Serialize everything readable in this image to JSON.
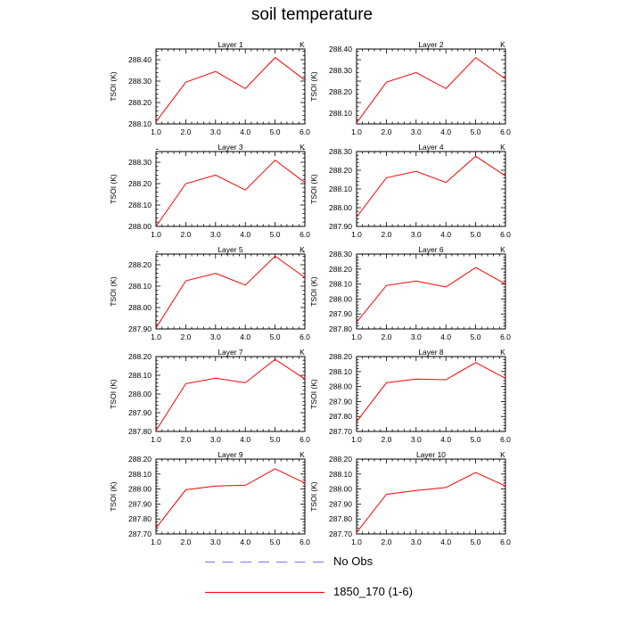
{
  "title": "soil temperature",
  "chart_data": [
    {
      "type": "line",
      "title": "Layer 1",
      "corner_label": "K",
      "ylabel": "TSOI  (K)",
      "x": [
        1,
        2,
        3,
        4,
        5,
        6
      ],
      "xticks": [
        "1.0",
        "2.0",
        "3.0",
        "4.0",
        "5.0",
        "6.0"
      ],
      "xlim": [
        1,
        6
      ],
      "ylim": [
        288.1,
        288.45
      ],
      "yticks": [
        "288.10",
        "288.20",
        "288.30",
        "288.40"
      ],
      "series": [
        {
          "name": "1850_170 (1-6)",
          "color": "#ff0000",
          "values": [
            288.11,
            288.295,
            288.345,
            288.265,
            288.41,
            288.305
          ]
        }
      ]
    },
    {
      "type": "line",
      "title": "Layer 2",
      "corner_label": "K",
      "ylabel": "TSOI  (K)",
      "x": [
        1,
        2,
        3,
        4,
        5,
        6
      ],
      "xticks": [
        "1.0",
        "2.0",
        "3.0",
        "4.0",
        "5.0",
        "6.0"
      ],
      "xlim": [
        1,
        6
      ],
      "ylim": [
        288.05,
        288.4
      ],
      "yticks": [
        "288.10",
        "288.20",
        "288.30",
        "288.40"
      ],
      "series": [
        {
          "name": "1850_170 (1-6)",
          "color": "#ff0000",
          "values": [
            288.055,
            288.245,
            288.29,
            288.215,
            288.36,
            288.26
          ]
        }
      ]
    },
    {
      "type": "line",
      "title": "Layer 3",
      "corner_label": "K",
      "ylabel": "TSOI  (K)",
      "x": [
        1,
        2,
        3,
        4,
        5,
        6
      ],
      "xticks": [
        "1.0",
        "2.0",
        "3.0",
        "4.0",
        "5.0",
        "6.0"
      ],
      "xlim": [
        1,
        6
      ],
      "ylim": [
        288.0,
        288.35
      ],
      "yticks": [
        "288.00",
        "288.10",
        "288.20",
        "288.30"
      ],
      "series": [
        {
          "name": "1850_170 (1-6)",
          "color": "#ff0000",
          "values": [
            288.0,
            288.2,
            288.24,
            288.17,
            288.31,
            288.205
          ]
        }
      ]
    },
    {
      "type": "line",
      "title": "Layer 4",
      "corner_label": "K",
      "ylabel": "TSOI  (K)",
      "x": [
        1,
        2,
        3,
        4,
        5,
        6
      ],
      "xticks": [
        "1.0",
        "2.0",
        "3.0",
        "4.0",
        "5.0",
        "6.0"
      ],
      "xlim": [
        1,
        6
      ],
      "ylim": [
        287.9,
        288.3
      ],
      "yticks": [
        "287.90",
        "288.00",
        "288.10",
        "288.20",
        "288.30"
      ],
      "series": [
        {
          "name": "1850_170 (1-6)",
          "color": "#ff0000",
          "values": [
            287.95,
            288.16,
            288.195,
            288.135,
            288.275,
            288.17
          ]
        }
      ]
    },
    {
      "type": "line",
      "title": "Layer 5",
      "corner_label": "K",
      "ylabel": "TSOI  (K)",
      "x": [
        1,
        2,
        3,
        4,
        5,
        6
      ],
      "xticks": [
        "1.0",
        "2.0",
        "3.0",
        "4.0",
        "5.0",
        "6.0"
      ],
      "xlim": [
        1,
        6
      ],
      "ylim": [
        287.9,
        288.25
      ],
      "yticks": [
        "287.90",
        "288.00",
        "288.10",
        "288.20"
      ],
      "series": [
        {
          "name": "1850_170 (1-6)",
          "color": "#ff0000",
          "values": [
            287.905,
            288.125,
            288.16,
            288.105,
            288.24,
            288.14
          ]
        }
      ]
    },
    {
      "type": "line",
      "title": "Layer 6",
      "corner_label": "K",
      "ylabel": "TSOI  (K)",
      "x": [
        1,
        2,
        3,
        4,
        5,
        6
      ],
      "xticks": [
        "1.0",
        "2.0",
        "3.0",
        "4.0",
        "5.0",
        "6.0"
      ],
      "xlim": [
        1,
        6
      ],
      "ylim": [
        287.8,
        288.3
      ],
      "yticks": [
        "287.80",
        "287.90",
        "288.00",
        "288.10",
        "288.20",
        "288.30"
      ],
      "series": [
        {
          "name": "1850_170 (1-6)",
          "color": "#ff0000",
          "values": [
            287.845,
            288.09,
            288.12,
            288.08,
            288.21,
            288.1
          ]
        }
      ]
    },
    {
      "type": "line",
      "title": "Layer 7",
      "corner_label": "K",
      "ylabel": "TSOI  (K)",
      "x": [
        1,
        2,
        3,
        4,
        5,
        6
      ],
      "xticks": [
        "1.0",
        "2.0",
        "3.0",
        "4.0",
        "5.0",
        "6.0"
      ],
      "xlim": [
        1,
        6
      ],
      "ylim": [
        287.8,
        288.2
      ],
      "yticks": [
        "287.80",
        "287.90",
        "288.00",
        "288.10",
        "288.20"
      ],
      "series": [
        {
          "name": "1850_170 (1-6)",
          "color": "#ff0000",
          "values": [
            287.805,
            288.055,
            288.085,
            288.06,
            288.185,
            288.08
          ]
        }
      ]
    },
    {
      "type": "line",
      "title": "Layer 8",
      "corner_label": "K",
      "ylabel": "TSOI  (K)",
      "x": [
        1,
        2,
        3,
        4,
        5,
        6
      ],
      "xticks": [
        "1.0",
        "2.0",
        "3.0",
        "4.0",
        "5.0",
        "6.0"
      ],
      "xlim": [
        1,
        6
      ],
      "ylim": [
        287.7,
        288.2
      ],
      "yticks": [
        "287.70",
        "287.80",
        "287.90",
        "288.00",
        "288.10",
        "288.20"
      ],
      "series": [
        {
          "name": "1850_170 (1-6)",
          "color": "#ff0000",
          "values": [
            287.765,
            288.025,
            288.05,
            288.045,
            288.16,
            288.055
          ]
        }
      ]
    },
    {
      "type": "line",
      "title": "Layer 9",
      "corner_label": "K",
      "ylabel": "TSOI  (K)",
      "x": [
        1,
        2,
        3,
        4,
        5,
        6
      ],
      "xticks": [
        "1.0",
        "2.0",
        "3.0",
        "4.0",
        "5.0",
        "6.0"
      ],
      "xlim": [
        1,
        6
      ],
      "ylim": [
        287.7,
        288.2
      ],
      "yticks": [
        "287.70",
        "287.80",
        "287.90",
        "288.00",
        "288.10",
        "288.20"
      ],
      "series": [
        {
          "name": "1850_170 (1-6)",
          "color": "#ff0000",
          "values": [
            287.74,
            287.995,
            288.02,
            288.025,
            288.135,
            288.04
          ]
        }
      ]
    },
    {
      "type": "line",
      "title": "Layer 10",
      "corner_label": "K",
      "ylabel": "TSOI  (K)",
      "x": [
        1,
        2,
        3,
        4,
        5,
        6
      ],
      "xticks": [
        "1.0",
        "2.0",
        "3.0",
        "4.0",
        "5.0",
        "6.0"
      ],
      "xlim": [
        1,
        6
      ],
      "ylim": [
        287.7,
        288.2
      ],
      "yticks": [
        "287.70",
        "287.80",
        "287.90",
        "288.00",
        "288.10",
        "288.20"
      ],
      "series": [
        {
          "name": "1850_170 (1-6)",
          "color": "#ff0000",
          "values": [
            287.71,
            287.965,
            287.99,
            288.01,
            288.11,
            288.02
          ]
        }
      ]
    }
  ],
  "legend": [
    {
      "label": "No Obs",
      "color": "#7777ee",
      "style": "dashed"
    },
    {
      "label": "1850_170 (1-6)",
      "color": "#ff0000",
      "style": "solid"
    }
  ]
}
